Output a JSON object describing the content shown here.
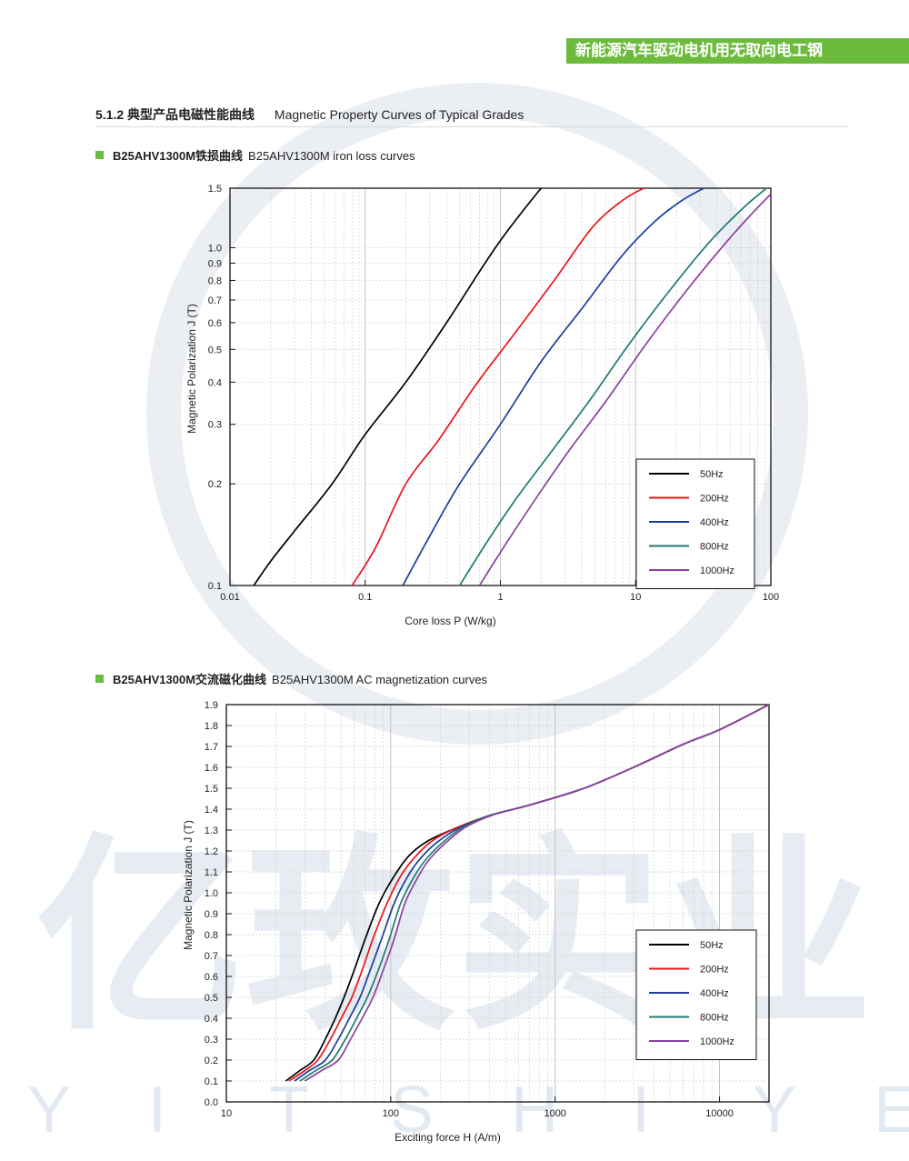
{
  "header": {
    "banner": "新能源汽车驱动电机用无取向电工钢"
  },
  "section": {
    "title_cn": "5.1.2 典型产品电磁性能曲线",
    "title_en": "Magnetic Property Curves of Typical Grades"
  },
  "chart1_heading": {
    "cn": "B25AHV1300M铁损曲线",
    "en": "B25AHV1300M iron loss curves"
  },
  "chart2_heading": {
    "cn": "B25AHV1300M交流磁化曲线",
    "en": "B25AHV1300M AC magnetization curves"
  },
  "colors": {
    "50Hz": "#000000",
    "200Hz": "#e8151b",
    "400Hz": "#1a3e9a",
    "800Hz": "#1e7a72",
    "1000Hz": "#8e3f9e",
    "accent": "#6dbb3c"
  },
  "watermark": {
    "cn": "亿玫实业",
    "en": [
      "Y",
      "I",
      "T",
      "S",
      "H",
      "I",
      "Y",
      "E"
    ]
  },
  "chart_data": [
    {
      "type": "line",
      "xscale": "log",
      "yscale": "log",
      "xlabel": "Core  loss P (W/kg)",
      "ylabel": "Magnetic Polarization J (T)",
      "xlim": [
        0.01,
        100
      ],
      "ylim": [
        0.1,
        1.5
      ],
      "xticks": [
        0.01,
        0.1,
        1,
        10,
        100
      ],
      "xtick_labels": [
        "0.01",
        "0.1",
        "1",
        "10",
        "100"
      ],
      "yticks": [
        0.1,
        0.2,
        0.3,
        0.4,
        0.5,
        0.6,
        0.7,
        0.8,
        0.9,
        1.0,
        1.5
      ],
      "ytick_labels": [
        "0.1",
        "0.2",
        "0.3",
        "0.4",
        "0.5",
        "0.6",
        "0.7",
        "0.8",
        "0.9",
        "1.0",
        "1.5"
      ],
      "grid": true,
      "legend": "bottom-right",
      "series": [
        {
          "name": "50Hz",
          "x": [
            0.015,
            0.02,
            0.03,
            0.057,
            0.1,
            0.2,
            0.4,
            0.7,
            1.0,
            1.5,
            2.0
          ],
          "y": [
            0.1,
            0.118,
            0.145,
            0.2,
            0.28,
            0.4,
            0.6,
            0.85,
            1.05,
            1.3,
            1.5
          ]
        },
        {
          "name": "200Hz",
          "x": [
            0.08,
            0.12,
            0.2,
            0.35,
            0.65,
            1.2,
            2.5,
            4.8,
            8.0,
            11.5
          ],
          "y": [
            0.1,
            0.13,
            0.2,
            0.27,
            0.39,
            0.54,
            0.8,
            1.15,
            1.38,
            1.5
          ]
        },
        {
          "name": "400Hz",
          "x": [
            0.19,
            0.3,
            0.5,
            1.0,
            2.0,
            4.0,
            8.0,
            14.0,
            22.0,
            32.0
          ],
          "y": [
            0.1,
            0.14,
            0.2,
            0.3,
            0.46,
            0.66,
            0.95,
            1.2,
            1.38,
            1.5
          ]
        },
        {
          "name": "800Hz",
          "x": [
            0.5,
            0.8,
            1.3,
            2.4,
            4.5,
            9.0,
            18.0,
            36.0,
            65.0,
            93.0
          ],
          "y": [
            0.1,
            0.135,
            0.18,
            0.25,
            0.35,
            0.52,
            0.75,
            1.05,
            1.33,
            1.5
          ]
        },
        {
          "name": "1000Hz",
          "x": [
            0.7,
            1.1,
            1.9,
            3.2,
            6.0,
            12.0,
            24.0,
            48.0,
            75.0,
            100.0
          ],
          "y": [
            0.1,
            0.133,
            0.185,
            0.25,
            0.35,
            0.52,
            0.75,
            1.05,
            1.28,
            1.44
          ]
        }
      ]
    },
    {
      "type": "line",
      "xscale": "log",
      "yscale": "linear",
      "xlabel": "Exciting force H (A/m)",
      "ylabel": "Magnetic Polarization J (T)",
      "xlim": [
        10,
        20000
      ],
      "ylim": [
        0,
        1.9
      ],
      "xticks": [
        10,
        100,
        1000,
        10000
      ],
      "xtick_labels": [
        "10",
        "100",
        "1000",
        "10000"
      ],
      "yticks": [
        0.0,
        0.1,
        0.2,
        0.3,
        0.4,
        0.5,
        0.6,
        0.7,
        0.8,
        0.9,
        1.0,
        1.1,
        1.2,
        1.3,
        1.4,
        1.5,
        1.6,
        1.7,
        1.8,
        1.9
      ],
      "ytick_labels": [
        "0.0",
        "0.1",
        "0.2",
        "0.3",
        "0.4",
        "0.5",
        "0.6",
        "0.7",
        "0.8",
        "0.9",
        "1.0",
        "1.1",
        "1.2",
        "1.3",
        "1.4",
        "1.5",
        "1.6",
        "1.7",
        "1.8",
        "1.9"
      ],
      "grid": true,
      "legend": "lower-right",
      "series": [
        {
          "name": "50Hz",
          "x": [
            23,
            28,
            34,
            40,
            46,
            52,
            60,
            70,
            85,
            105,
            130,
            170,
            250,
            400,
            700,
            1500,
            3000,
            6000,
            10000,
            20000
          ],
          "y": [
            0.1,
            0.15,
            0.2,
            0.3,
            0.4,
            0.5,
            0.63,
            0.78,
            0.95,
            1.08,
            1.18,
            1.25,
            1.31,
            1.37,
            1.42,
            1.5,
            1.6,
            1.71,
            1.78,
            1.9
          ]
        },
        {
          "name": "200Hz",
          "x": [
            24,
            30,
            36,
            43,
            50,
            58,
            67,
            78,
            95,
            115,
            140,
            180,
            250,
            400,
            700,
            1500,
            3000,
            6000,
            10000,
            20000
          ],
          "y": [
            0.1,
            0.15,
            0.2,
            0.3,
            0.4,
            0.5,
            0.63,
            0.78,
            0.95,
            1.08,
            1.17,
            1.25,
            1.31,
            1.37,
            1.42,
            1.5,
            1.6,
            1.71,
            1.78,
            1.9
          ]
        },
        {
          "name": "400Hz",
          "x": [
            26,
            32,
            40,
            48,
            56,
            65,
            75,
            88,
            105,
            125,
            150,
            190,
            260,
            400,
            700,
            1500,
            3000,
            6000,
            10000,
            20000
          ],
          "y": [
            0.1,
            0.15,
            0.2,
            0.3,
            0.4,
            0.5,
            0.63,
            0.78,
            0.95,
            1.07,
            1.16,
            1.24,
            1.31,
            1.37,
            1.42,
            1.5,
            1.6,
            1.71,
            1.78,
            1.9
          ]
        },
        {
          "name": "800Hz",
          "x": [
            28,
            35,
            44,
            53,
            62,
            72,
            84,
            98,
            115,
            135,
            160,
            200,
            270,
            400,
            700,
            1500,
            3000,
            6000,
            10000,
            20000
          ],
          "y": [
            0.1,
            0.15,
            0.2,
            0.3,
            0.4,
            0.5,
            0.63,
            0.78,
            0.95,
            1.06,
            1.15,
            1.23,
            1.31,
            1.37,
            1.42,
            1.5,
            1.6,
            1.71,
            1.78,
            1.9
          ]
        },
        {
          "name": "1000Hz",
          "x": [
            30,
            38,
            48,
            57,
            67,
            78,
            90,
            105,
            122,
            143,
            168,
            210,
            280,
            410,
            700,
            1500,
            3000,
            6000,
            10000,
            20000
          ],
          "y": [
            0.1,
            0.15,
            0.2,
            0.3,
            0.4,
            0.5,
            0.63,
            0.78,
            0.95,
            1.06,
            1.15,
            1.23,
            1.31,
            1.37,
            1.42,
            1.5,
            1.6,
            1.71,
            1.78,
            1.9
          ]
        }
      ]
    }
  ]
}
